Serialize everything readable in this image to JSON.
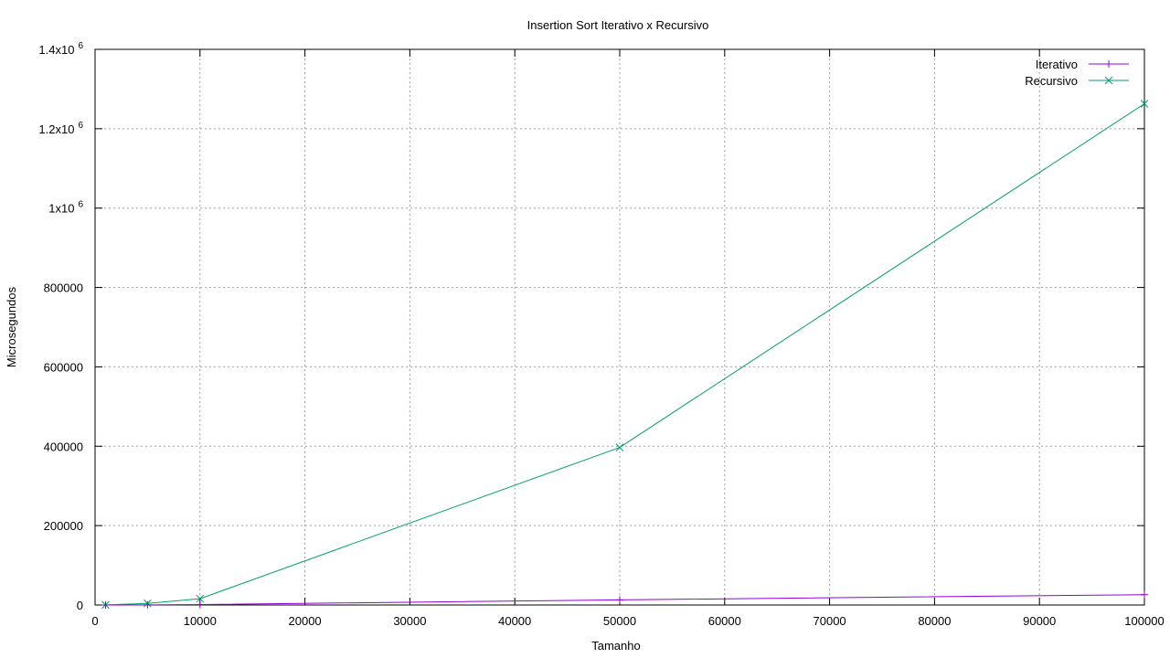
{
  "chart_data": {
    "type": "line",
    "title": "Insertion Sort Iterativo x Recursivo",
    "xlabel": "Tamanho",
    "ylabel": "Microsegundos",
    "xlim": [
      0,
      100000
    ],
    "ylim": [
      0,
      1400000
    ],
    "grid": true,
    "legend_position": "top-right",
    "x_ticks": [
      0,
      10000,
      20000,
      30000,
      40000,
      50000,
      60000,
      70000,
      80000,
      90000,
      100000
    ],
    "x_tick_labels": [
      "0",
      "10000",
      "20000",
      "30000",
      "40000",
      "50000",
      "60000",
      "70000",
      "80000",
      "90000",
      "100000"
    ],
    "y_ticks": [
      {
        "value": 0,
        "label": "0",
        "exp": ""
      },
      {
        "value": 200000,
        "label": "200000",
        "exp": ""
      },
      {
        "value": 400000,
        "label": "400000",
        "exp": ""
      },
      {
        "value": 600000,
        "label": "600000",
        "exp": ""
      },
      {
        "value": 800000,
        "label": "800000",
        "exp": ""
      },
      {
        "value": 1000000,
        "label": "1x10",
        "exp": "6"
      },
      {
        "value": 1200000,
        "label": "1.2x10",
        "exp": "6"
      },
      {
        "value": 1400000,
        "label": "1.4x10",
        "exp": "6"
      }
    ],
    "x": [
      1000,
      5000,
      10000,
      50000,
      100000
    ],
    "series": [
      {
        "name": "Iterativo",
        "color": "#9400d3",
        "marker": "plus",
        "values": [
          10,
          300,
          1100,
          13000,
          26000
        ]
      },
      {
        "name": "Recursivo",
        "color": "#009e73",
        "marker": "cross",
        "values": [
          200,
          4000,
          16000,
          397000,
          1263000
        ]
      }
    ]
  }
}
